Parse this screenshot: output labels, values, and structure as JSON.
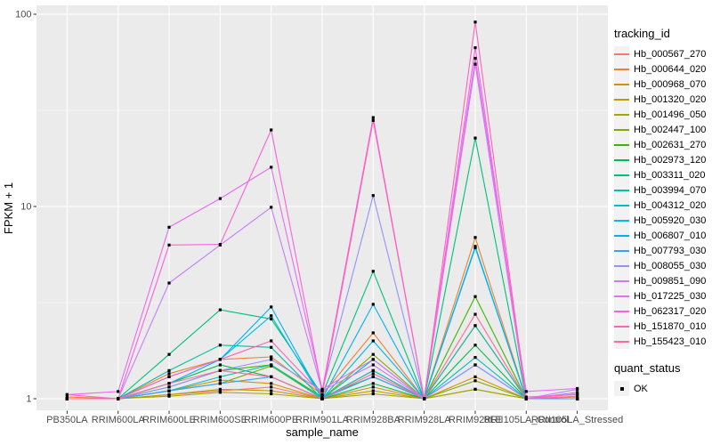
{
  "figure": {
    "x_axis": {
      "title": "sample_name"
    },
    "y_axis": {
      "title": "FPKM + 1",
      "scale": "log10",
      "tick_labels": [
        "1",
        "10",
        "100"
      ]
    },
    "legend": {
      "tracking_title": "tracking_id",
      "quant_title": "quant_status",
      "quant_label": "OK"
    },
    "panel_background": "#EBEBEB",
    "gridline_color": "#FFFFFF",
    "point_color": "#000000"
  },
  "chart_data": {
    "type": "line",
    "title": "",
    "xlabel": "sample_name",
    "ylabel": "FPKM + 1",
    "yscale": "log10",
    "ylim": [
      1,
      100
    ],
    "yticks": [
      1,
      10,
      100
    ],
    "grid": "white major and minor on grey panel",
    "legend_position": "right",
    "point_shape": "small black point (quant_status = OK)",
    "x": [
      "PB350LA",
      "RRIM600LA",
      "RRIM600LE",
      "RRIM600SE",
      "RRIM600PE",
      "RRIM901LA",
      "RRIM928BA",
      "RRIM928LA",
      "RRIM928LE",
      "RRII105LA_Control",
      "RRII105LA_Stressed"
    ],
    "series": [
      {
        "name": "Hb_000567_270",
        "color": "#F8766D",
        "values": [
          1.0,
          1.0,
          1.05,
          1.1,
          1.15,
          1.0,
          1.4,
          1.0,
          2.4,
          1.0,
          1.0
        ]
      },
      {
        "name": "Hb_000644_020",
        "color": "#EA8331",
        "values": [
          1.02,
          1.0,
          1.35,
          1.6,
          1.65,
          1.05,
          2.2,
          1.0,
          6.9,
          1.0,
          1.02
        ]
      },
      {
        "name": "Hb_000968_070",
        "color": "#D89000",
        "values": [
          1.0,
          1.0,
          1.1,
          1.25,
          1.2,
          1.0,
          1.15,
          1.0,
          1.3,
          1.0,
          1.0
        ]
      },
      {
        "name": "Hb_001320_020",
        "color": "#C09B00",
        "values": [
          1.0,
          1.0,
          1.05,
          1.12,
          1.1,
          1.0,
          1.1,
          1.0,
          1.12,
          1.0,
          1.0
        ]
      },
      {
        "name": "Hb_001496_050",
        "color": "#A3A500",
        "values": [
          1.0,
          1.0,
          1.03,
          1.08,
          1.06,
          1.0,
          1.06,
          1.0,
          1.12,
          1.0,
          1.0
        ]
      },
      {
        "name": "Hb_002447_100",
        "color": "#7CAE00",
        "values": [
          1.0,
          1.0,
          1.1,
          1.2,
          1.48,
          1.0,
          1.7,
          1.0,
          1.24,
          1.0,
          1.0
        ]
      },
      {
        "name": "Hb_002631_270",
        "color": "#39B600",
        "values": [
          1.0,
          1.0,
          1.15,
          1.4,
          1.5,
          1.02,
          1.3,
          1.0,
          3.4,
          1.0,
          1.0
        ]
      },
      {
        "name": "Hb_002973_120",
        "color": "#00BB4E",
        "values": [
          1.0,
          1.0,
          1.2,
          1.5,
          1.3,
          1.0,
          1.2,
          1.0,
          1.9,
          1.0,
          1.0
        ]
      },
      {
        "name": "Hb_003311_020",
        "color": "#00BF7D",
        "values": [
          1.0,
          1.0,
          1.7,
          2.9,
          2.6,
          1.05,
          4.6,
          1.0,
          22.7,
          1.0,
          1.0
        ]
      },
      {
        "name": "Hb_003994_070",
        "color": "#00C1A3",
        "values": [
          1.0,
          1.0,
          1.4,
          1.9,
          1.85,
          1.0,
          1.6,
          1.0,
          2.4,
          1.0,
          1.0
        ]
      },
      {
        "name": "Hb_004312_020",
        "color": "#00BFC4",
        "values": [
          1.0,
          1.0,
          1.1,
          1.3,
          1.5,
          1.0,
          1.4,
          1.0,
          1.64,
          1.0,
          1.0
        ]
      },
      {
        "name": "Hb_005920_030",
        "color": "#00BAE0",
        "values": [
          1.0,
          1.0,
          1.3,
          1.6,
          2.7,
          1.0,
          2.0,
          1.0,
          6.2,
          1.0,
          1.0
        ]
      },
      {
        "name": "Hb_006807_010",
        "color": "#00B0F6",
        "values": [
          1.0,
          1.0,
          1.2,
          1.6,
          3.0,
          1.0,
          3.1,
          1.0,
          6.1,
          1.0,
          1.0
        ]
      },
      {
        "name": "Hb_007793_030",
        "color": "#35A2FF",
        "values": [
          1.0,
          1.0,
          1.1,
          1.2,
          1.3,
          1.0,
          1.3,
          1.0,
          1.5,
          1.0,
          1.0
        ]
      },
      {
        "name": "Hb_008055_030",
        "color": "#9590FF",
        "values": [
          1.0,
          1.0,
          1.15,
          1.4,
          1.6,
          1.1,
          11.4,
          1.0,
          1.5,
          1.0,
          1.08
        ]
      },
      {
        "name": "Hb_009851_090",
        "color": "#C77CFF",
        "values": [
          1.0,
          1.0,
          4.0,
          6.3,
          9.9,
          1.1,
          1.5,
          1.0,
          55.0,
          1.0,
          1.12
        ]
      },
      {
        "name": "Hb_017225_030",
        "color": "#E76BF3",
        "values": [
          1.05,
          1.09,
          7.8,
          11.0,
          16.0,
          1.12,
          1.6,
          1.0,
          59.0,
          1.09,
          1.13
        ]
      },
      {
        "name": "Hb_062317_020",
        "color": "#FA62DB",
        "values": [
          1.05,
          1.0,
          6.3,
          6.35,
          25.0,
          1.1,
          29.0,
          1.0,
          67.0,
          1.02,
          1.05
        ]
      },
      {
        "name": "Hb_151870_010",
        "color": "#FF62BC",
        "values": [
          1.0,
          1.0,
          1.3,
          1.6,
          2.0,
          1.05,
          28.0,
          1.0,
          91.0,
          1.0,
          1.06
        ]
      },
      {
        "name": "Hb_155423_010",
        "color": "#FF6A98",
        "values": [
          1.0,
          1.0,
          1.2,
          1.4,
          1.3,
          1.0,
          1.35,
          1.0,
          2.75,
          1.0,
          1.03
        ]
      }
    ]
  }
}
